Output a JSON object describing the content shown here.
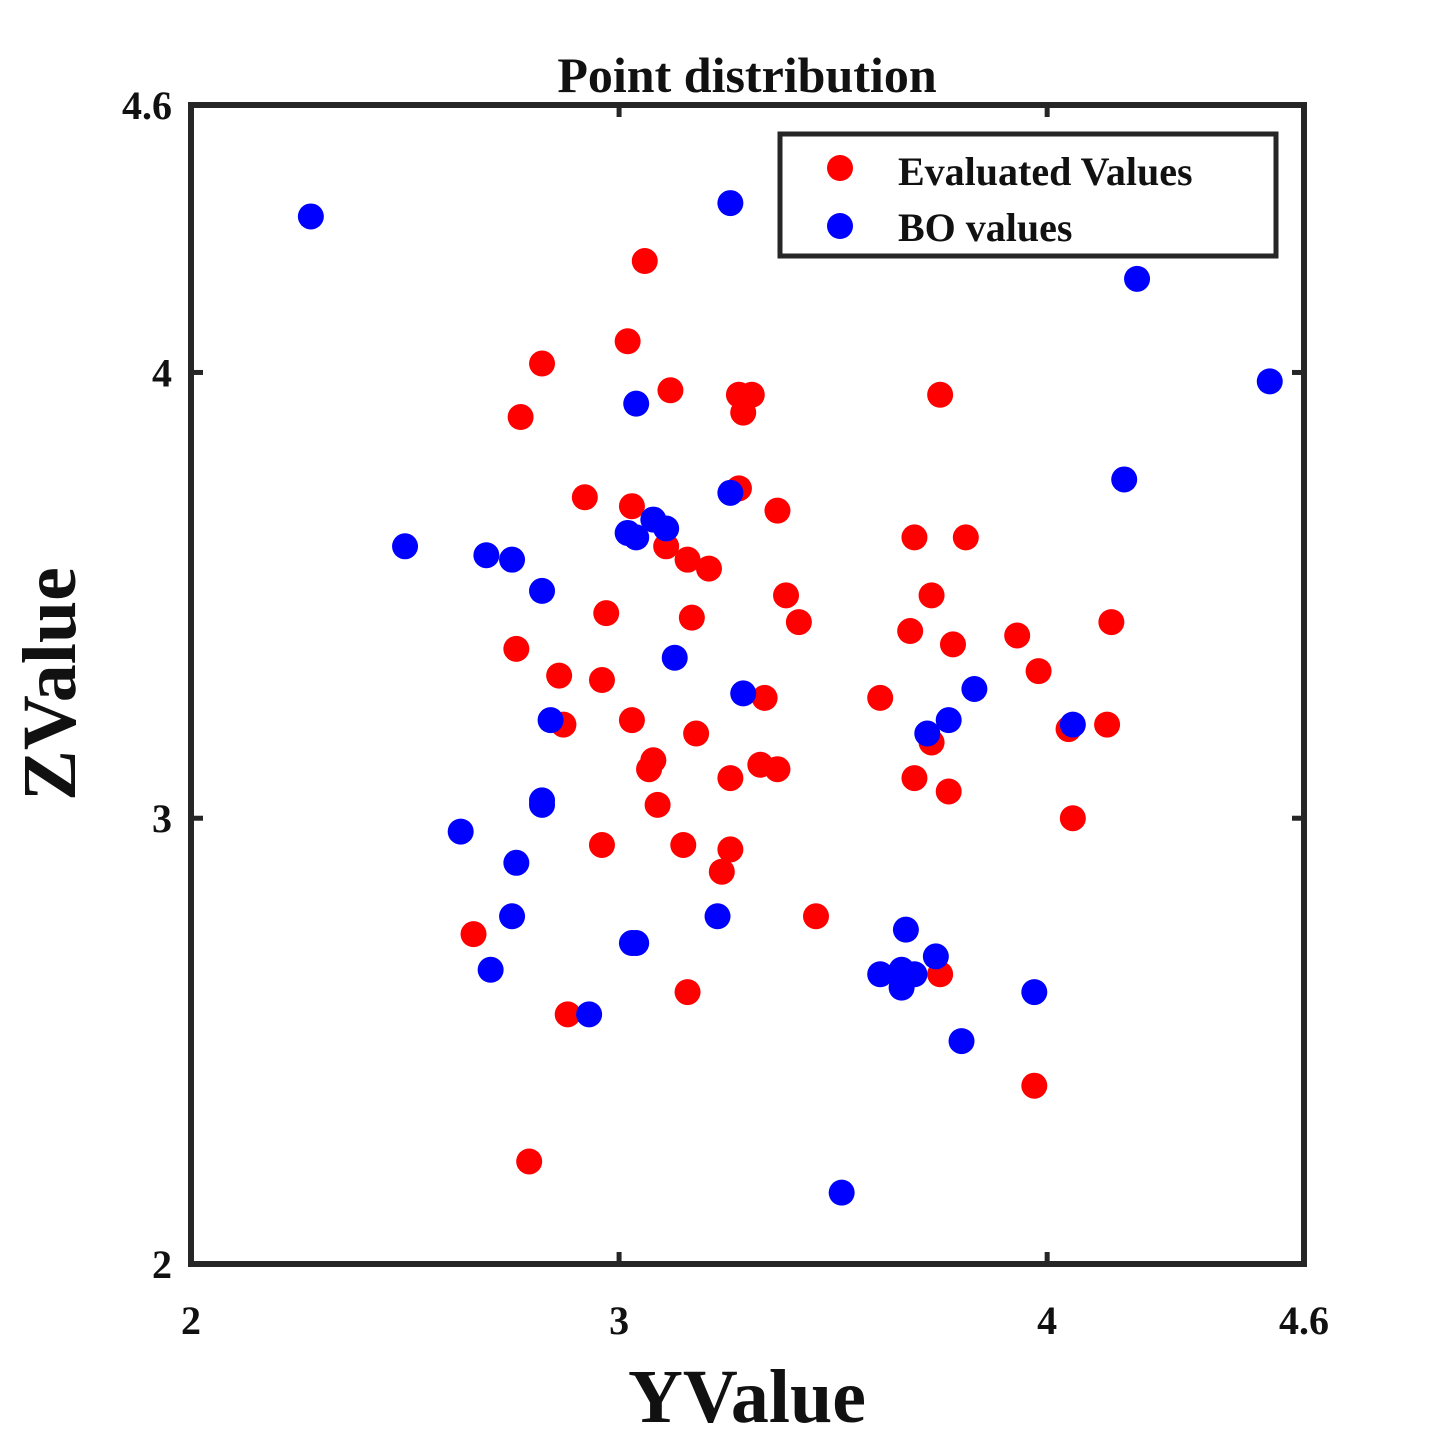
{
  "chart_data": {
    "type": "scatter",
    "title": "Point distribution",
    "xlabel": "YValue",
    "ylabel": "ZValue",
    "xlim": [
      2,
      4.6
    ],
    "ylim": [
      2,
      4.6
    ],
    "xticks": [
      2,
      3,
      4,
      4.6
    ],
    "yticks": [
      2,
      3,
      4,
      4.6
    ],
    "xtick_labels": [
      "2",
      "3",
      "4",
      "4.6"
    ],
    "ytick_labels": [
      "2",
      "3",
      "4",
      "4.6"
    ],
    "grid": false,
    "legend_position": "top-right",
    "series": [
      {
        "name": "Evaluated Values",
        "color": "#ff0000",
        "points": [
          [
            3.06,
            4.25
          ],
          [
            3.02,
            4.07
          ],
          [
            2.82,
            4.02
          ],
          [
            2.77,
            3.9
          ],
          [
            3.12,
            3.96
          ],
          [
            3.28,
            3.95
          ],
          [
            3.31,
            3.95
          ],
          [
            3.29,
            3.91
          ],
          [
            3.75,
            3.95
          ],
          [
            2.92,
            3.72
          ],
          [
            3.03,
            3.7
          ],
          [
            3.28,
            3.74
          ],
          [
            3.37,
            3.69
          ],
          [
            3.11,
            3.61
          ],
          [
            3.16,
            3.58
          ],
          [
            3.21,
            3.56
          ],
          [
            3.69,
            3.63
          ],
          [
            3.81,
            3.63
          ],
          [
            3.39,
            3.5
          ],
          [
            3.73,
            3.5
          ],
          [
            2.97,
            3.46
          ],
          [
            3.17,
            3.45
          ],
          [
            3.42,
            3.44
          ],
          [
            3.68,
            3.42
          ],
          [
            3.93,
            3.41
          ],
          [
            4.15,
            3.44
          ],
          [
            2.76,
            3.38
          ],
          [
            3.78,
            3.39
          ],
          [
            3.98,
            3.33
          ],
          [
            2.86,
            3.32
          ],
          [
            2.96,
            3.31
          ],
          [
            3.34,
            3.27
          ],
          [
            3.61,
            3.27
          ],
          [
            3.03,
            3.22
          ],
          [
            2.87,
            3.21
          ],
          [
            3.18,
            3.19
          ],
          [
            4.05,
            3.2
          ],
          [
            4.14,
            3.21
          ],
          [
            3.08,
            3.13
          ],
          [
            3.73,
            3.17
          ],
          [
            3.33,
            3.12
          ],
          [
            3.07,
            3.11
          ],
          [
            3.37,
            3.11
          ],
          [
            3.26,
            3.09
          ],
          [
            3.69,
            3.09
          ],
          [
            3.77,
            3.06
          ],
          [
            3.09,
            3.03
          ],
          [
            4.06,
            3.0
          ],
          [
            2.96,
            2.94
          ],
          [
            3.15,
            2.94
          ],
          [
            3.26,
            2.93
          ],
          [
            3.24,
            2.88
          ],
          [
            3.46,
            2.78
          ],
          [
            2.66,
            2.74
          ],
          [
            3.75,
            2.65
          ],
          [
            3.16,
            2.61
          ],
          [
            2.88,
            2.56
          ],
          [
            3.97,
            2.4
          ],
          [
            2.79,
            2.23
          ]
        ]
      },
      {
        "name": "BO values",
        "color": "#0000ff",
        "points": [
          [
            2.28,
            4.35
          ],
          [
            3.26,
            4.38
          ],
          [
            4.21,
            4.21
          ],
          [
            4.52,
            3.98
          ],
          [
            3.04,
            3.93
          ],
          [
            3.26,
            3.73
          ],
          [
            4.18,
            3.76
          ],
          [
            3.08,
            3.67
          ],
          [
            3.11,
            3.65
          ],
          [
            3.02,
            3.64
          ],
          [
            3.04,
            3.63
          ],
          [
            2.5,
            3.61
          ],
          [
            2.69,
            3.59
          ],
          [
            2.75,
            3.58
          ],
          [
            2.82,
            3.51
          ],
          [
            3.13,
            3.36
          ],
          [
            3.29,
            3.28
          ],
          [
            3.83,
            3.29
          ],
          [
            2.84,
            3.22
          ],
          [
            3.77,
            3.22
          ],
          [
            3.72,
            3.19
          ],
          [
            4.06,
            3.21
          ],
          [
            2.82,
            3.04
          ],
          [
            2.82,
            3.03
          ],
          [
            2.63,
            2.97
          ],
          [
            2.76,
            2.9
          ],
          [
            2.75,
            2.78
          ],
          [
            3.23,
            2.78
          ],
          [
            3.67,
            2.75
          ],
          [
            3.03,
            2.72
          ],
          [
            3.04,
            2.72
          ],
          [
            3.74,
            2.69
          ],
          [
            2.7,
            2.66
          ],
          [
            3.61,
            2.65
          ],
          [
            3.66,
            2.66
          ],
          [
            3.69,
            2.65
          ],
          [
            3.66,
            2.62
          ],
          [
            3.97,
            2.61
          ],
          [
            2.93,
            2.56
          ],
          [
            3.8,
            2.5
          ],
          [
            3.52,
            2.16
          ]
        ]
      }
    ]
  }
}
